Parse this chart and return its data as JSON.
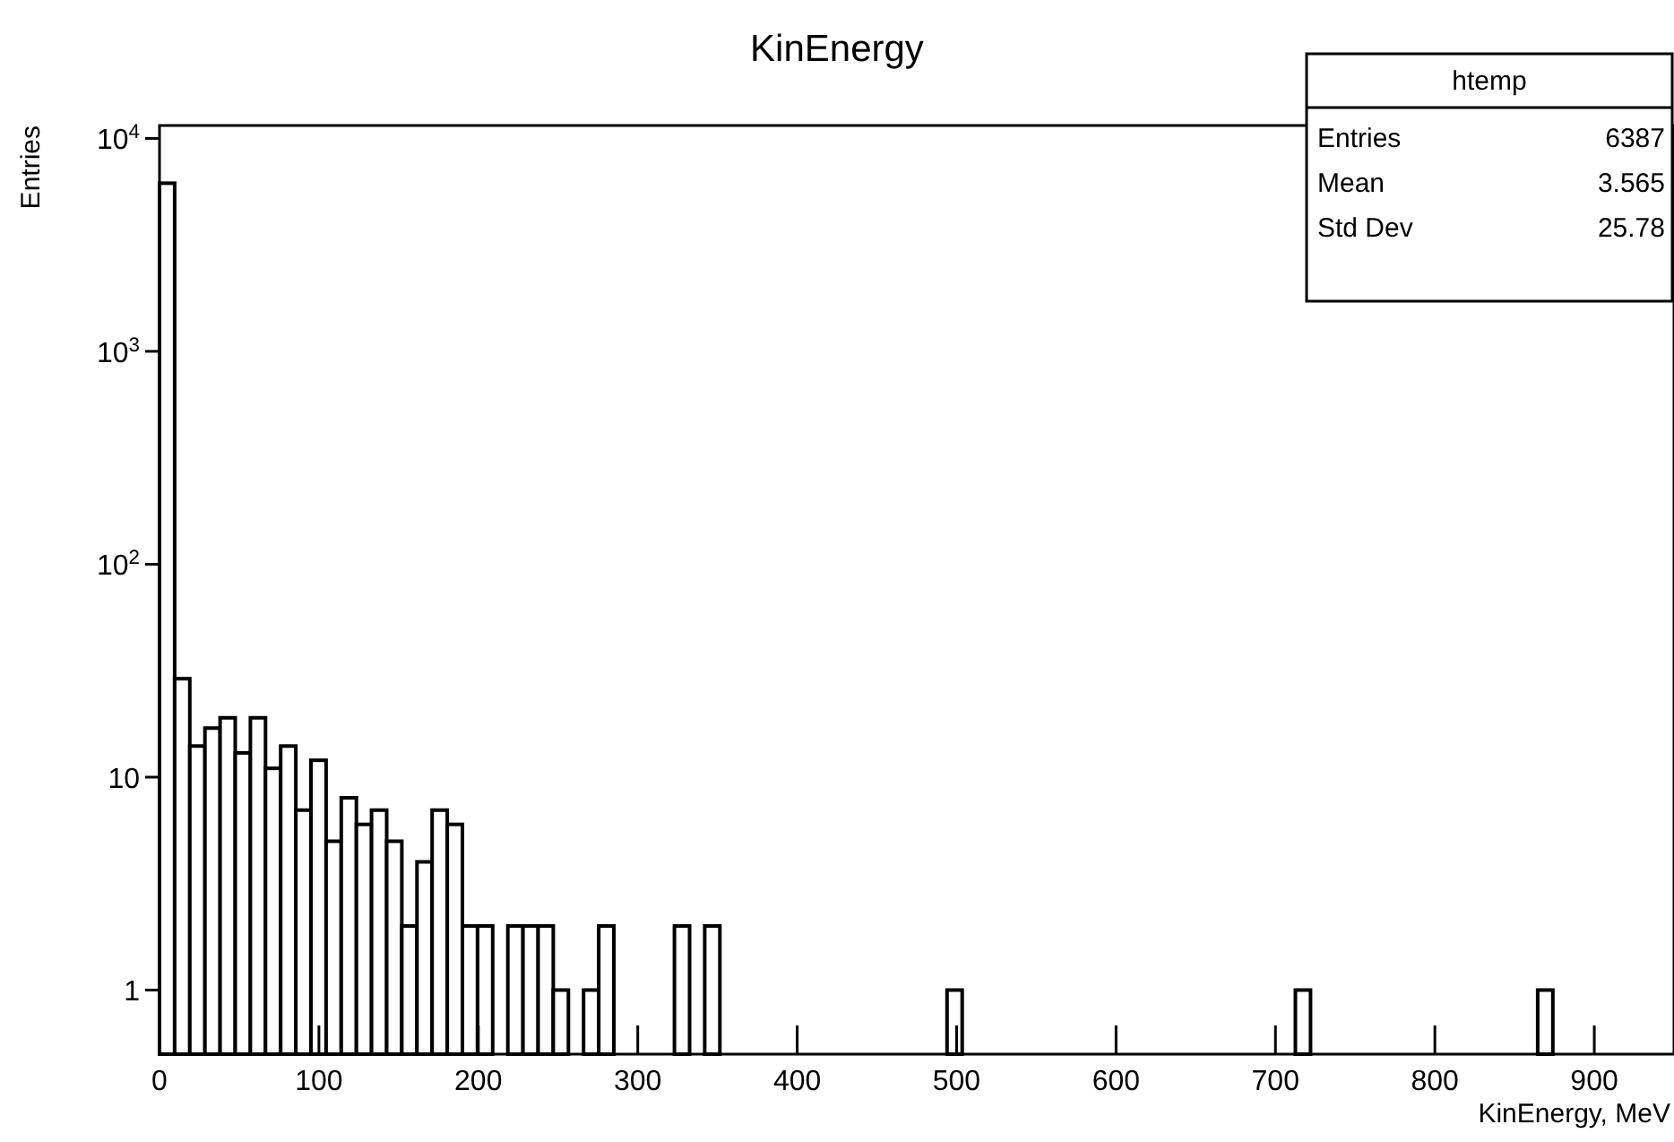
{
  "chart_data": {
    "type": "histogram",
    "title": "KinEnergy",
    "xlabel": "KinEnergy, MeV",
    "ylabel": "Entries",
    "bins": [
      0,
      9.5,
      19,
      28.5,
      38,
      47.5,
      57,
      66.5,
      76,
      85.5,
      95,
      104.5,
      114,
      123.5,
      133,
      142.5,
      152,
      161.5,
      171,
      180.5,
      190,
      199.5,
      209,
      218.5,
      228,
      237.5,
      247,
      256.5,
      266,
      275.5,
      285,
      294.5,
      304,
      313.5,
      323,
      332.5,
      342,
      351.5,
      361,
      370.5,
      380,
      389.5,
      399,
      408.5,
      418,
      427.5,
      437,
      446.5,
      456,
      465.5,
      475,
      484.5,
      494,
      503.5,
      513,
      522.5,
      532,
      541.5,
      551,
      560.5,
      570,
      579.5,
      589,
      598.5,
      608,
      617.5,
      627,
      636.5,
      646,
      655.5,
      665,
      674.5,
      684,
      693.5,
      703,
      712.5,
      722,
      731.5,
      741,
      750.5,
      760,
      769.5,
      779,
      788.5,
      798,
      807.5,
      817,
      826.5,
      836,
      845.5,
      855,
      864.5,
      874,
      883.5,
      893,
      902.5,
      912,
      921.5,
      931,
      940.5,
      950
    ],
    "values": [
      6161,
      29,
      14,
      17,
      19,
      13,
      19,
      11,
      14,
      7,
      12,
      5,
      8,
      6,
      7,
      5,
      2,
      4,
      7,
      6,
      2,
      2,
      null,
      2,
      2,
      2,
      1,
      null,
      1,
      2,
      null,
      null,
      null,
      null,
      2,
      null,
      2,
      null,
      null,
      null,
      null,
      null,
      null,
      null,
      null,
      null,
      null,
      null,
      null,
      null,
      null,
      null,
      1,
      null,
      null,
      null,
      null,
      null,
      null,
      null,
      null,
      null,
      null,
      null,
      null,
      null,
      null,
      null,
      null,
      null,
      null,
      null,
      null,
      null,
      null,
      1,
      null,
      null,
      null,
      null,
      null,
      null,
      null,
      null,
      null,
      null,
      null,
      null,
      null,
      null,
      null,
      1,
      null,
      null,
      null,
      null,
      null,
      null,
      null,
      null
    ],
    "color": "#000000",
    "log": "y",
    "xlim": [
      0,
      950
    ],
    "ylim": [
      0.5,
      11500
    ],
    "xticks": [
      0,
      100,
      200,
      300,
      400,
      500,
      600,
      700,
      800,
      900
    ],
    "yticks": [
      1,
      10,
      {
        "value": 100,
        "label": "10$^{2}$"
      },
      {
        "value": 1000,
        "label": "10$^{3}$"
      },
      {
        "value": 10000,
        "label": "10$^{4}$"
      }
    ],
    "grid": false,
    "annotations": [
      "htemp",
      "Entries",
      "6387",
      "Mean",
      "3.565",
      "Std Dev",
      "25.78"
    ]
  }
}
